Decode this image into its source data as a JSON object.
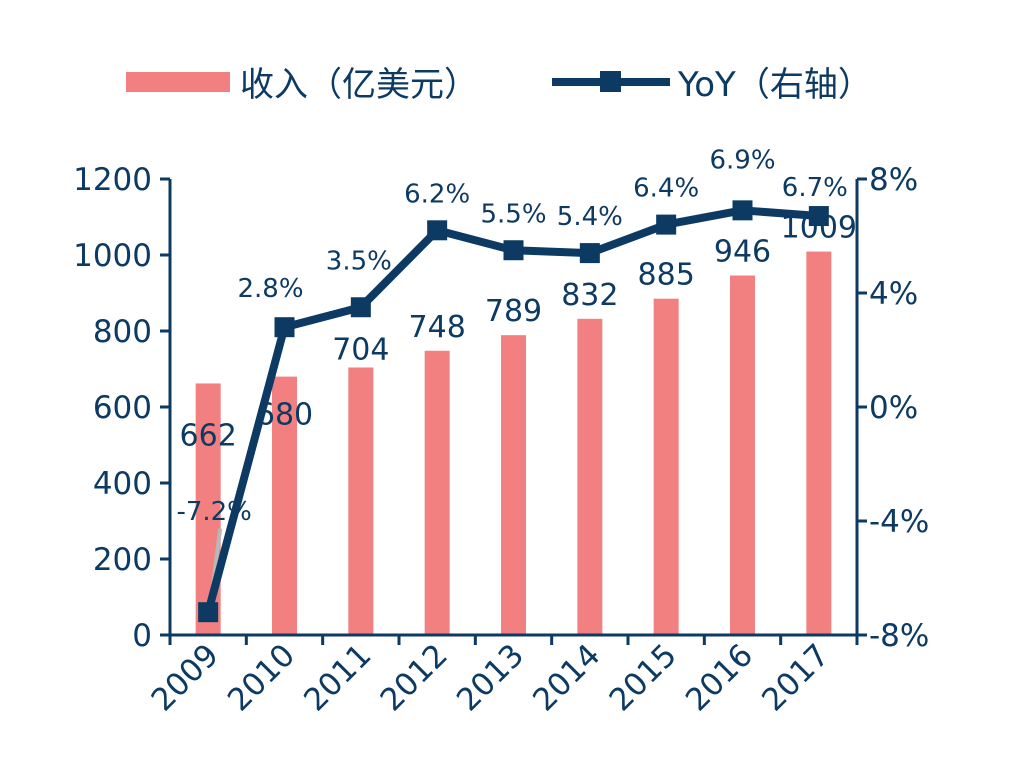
{
  "colors": {
    "bar": "#f28080",
    "line": "#0d3a63",
    "axis": "#0d3a63",
    "text": "#0d3a63",
    "ghost_marker": "#b8b8b8"
  },
  "chart_data": {
    "type": "bar",
    "categories": [
      "2009",
      "2010",
      "2011",
      "2012",
      "2013",
      "2014",
      "2015",
      "2016",
      "2017"
    ],
    "series": [
      {
        "name": "收入（亿美元）",
        "type": "bar",
        "axis": "left",
        "values": [
          662,
          680,
          704,
          748,
          789,
          832,
          885,
          946,
          1009
        ],
        "labels": [
          "662",
          "680",
          "704",
          "748",
          "789",
          "832",
          "885",
          "946",
          "1009"
        ]
      },
      {
        "name": "YoY（右轴）",
        "type": "line",
        "axis": "right",
        "values": [
          -7.2,
          2.8,
          3.5,
          6.2,
          5.5,
          5.4,
          6.4,
          6.9,
          6.7
        ],
        "labels": [
          "-7.2%",
          "2.8%",
          "3.5%",
          "6.2%",
          "5.5%",
          "5.4%",
          "6.4%",
          "6.9%",
          "6.7%"
        ]
      }
    ],
    "y_left": {
      "ylim": [
        0,
        1200
      ],
      "ticks": [
        "0",
        "200",
        "400",
        "600",
        "800",
        "1000",
        "1200"
      ]
    },
    "y_right": {
      "ylim": [
        -8,
        8
      ],
      "ticks": [
        "-8%",
        "-4%",
        "0%",
        "4%",
        "8%"
      ]
    },
    "title": "",
    "xlabel": "",
    "ylabel": "",
    "legend": {
      "position": "top",
      "items": [
        "收入（亿美元）",
        "YoY（右轴）"
      ]
    },
    "grid": false
  }
}
